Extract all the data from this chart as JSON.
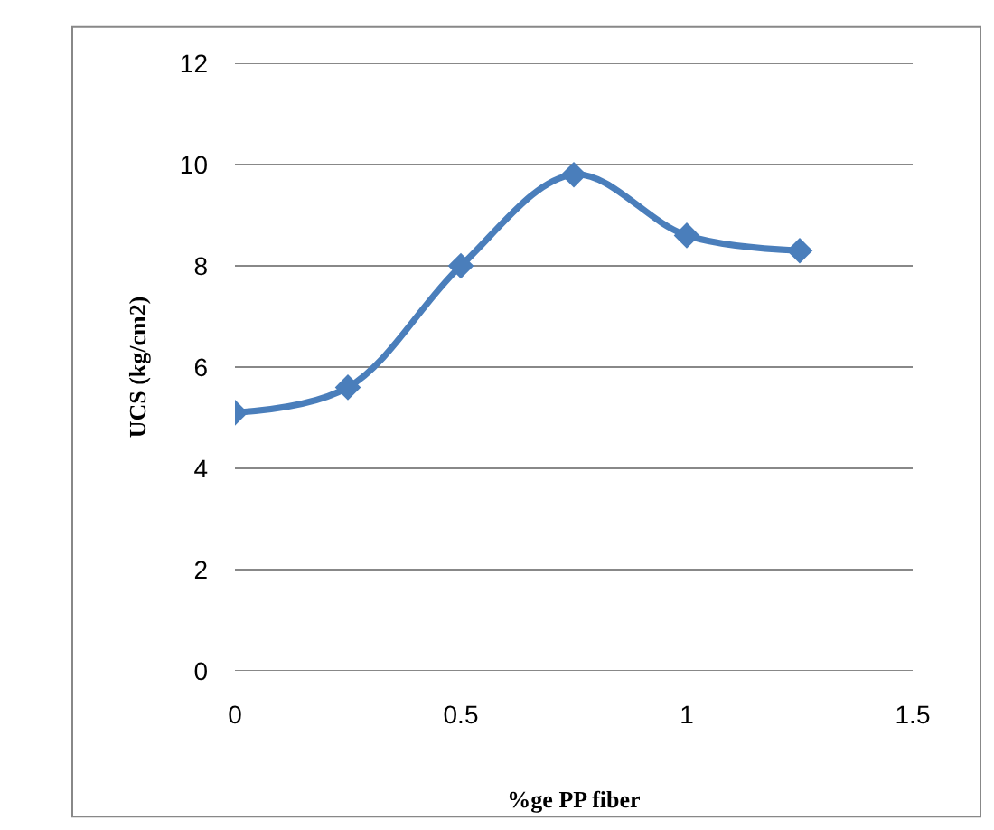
{
  "chart_data": {
    "type": "line",
    "xlabel": "%ge PP fiber",
    "ylabel": "UCS (kg/cm2)",
    "x": [
      0,
      0.25,
      0.5,
      0.75,
      1,
      1.25
    ],
    "series": [
      {
        "color": "#4a7ebb",
        "values": [
          5.1,
          5.6,
          8.0,
          9.8,
          8.6,
          8.3
        ]
      }
    ],
    "xlim": [
      0,
      1.5
    ],
    "xticks": [
      0,
      0.5,
      1,
      1.5
    ],
    "ylim": [
      0,
      12
    ],
    "yticks": [
      0,
      2,
      4,
      6,
      8,
      10,
      12
    ],
    "grid": "y",
    "marker": "diamond",
    "line_style": "solid"
  }
}
